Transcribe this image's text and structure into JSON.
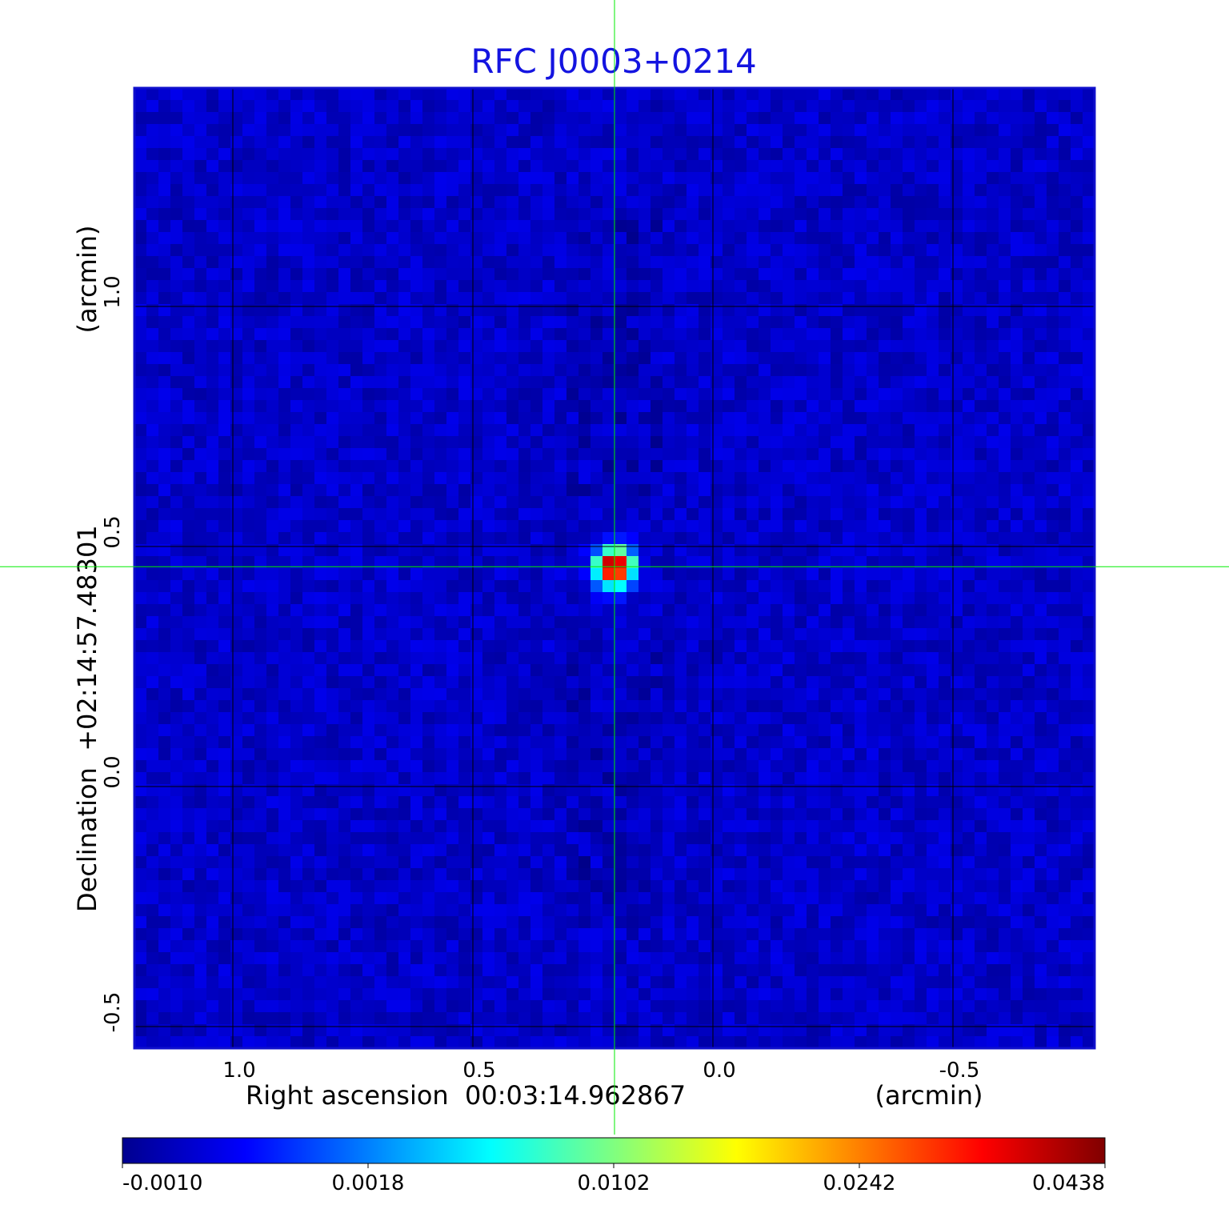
{
  "chart_data": {
    "type": "heatmap",
    "title": "RFC J0003+0214",
    "xlabel": "Right ascension  00:03:14.962867",
    "xunit": "(arcmin)",
    "ylabel": "Declination  +02:14:57.48301",
    "yunit": "(arcmin)",
    "x_ticks": [
      1.0,
      0.5,
      0.0,
      -0.5
    ],
    "x_tick_labels": [
      "1.0",
      "0.5",
      "0.0",
      "-0.5"
    ],
    "xlim": [
      1.205,
      -0.795
    ],
    "y_ticks": [
      1.0,
      0.5,
      0.0,
      -0.5
    ],
    "y_tick_labels": [
      "1.0",
      "0.5",
      "0.0",
      "-0.5"
    ],
    "ylim": [
      -0.545,
      1.455
    ],
    "grid": true,
    "crosshair": {
      "x": 0.205,
      "y": 0.458
    },
    "peak": {
      "x": 0.205,
      "y": 0.458,
      "value": 0.0438
    },
    "noise_level": -0.0002,
    "colormap": "jet",
    "colorbar": {
      "ticks": [
        -0.001,
        0.0018,
        0.0102,
        0.0242,
        0.0438
      ],
      "tick_labels": [
        "-0.0010",
        "0.0018",
        "0.0102",
        "0.0242",
        "0.0438"
      ]
    }
  },
  "colors": {
    "title": "#1414e0",
    "grid": "#000000",
    "crosshair": "#00ee00",
    "frame": "#1010cc"
  }
}
